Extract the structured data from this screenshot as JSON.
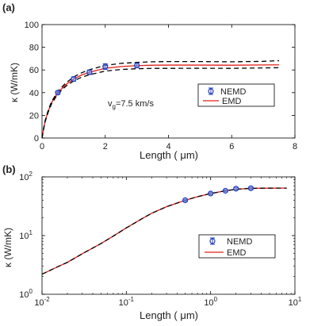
{
  "chart_data": [
    {
      "panel_label": "(a)",
      "type": "line",
      "xlabel": "Length ( μm)",
      "ylabel": "κ (W/mK)",
      "xlim": [
        0,
        8
      ],
      "ylim": [
        0,
        100
      ],
      "x_ticks": [
        0,
        2,
        4,
        6,
        8
      ],
      "y_ticks": [
        0,
        20,
        40,
        60,
        80,
        100
      ],
      "x_tick_labels": [
        "0",
        "2",
        "4",
        "6",
        "8"
      ],
      "y_tick_labels": [
        "0",
        "20",
        "40",
        "60",
        "80",
        "100"
      ],
      "x_scale": "linear",
      "y_scale": "linear",
      "grid": false,
      "annotation": "v_g=7.5 km/s",
      "annotation_base": "v",
      "annotation_sub": "g",
      "annotation_rest": "=7.5 km/s",
      "legend_position": "center-right",
      "series": [
        {
          "name": "NEMD",
          "kind": "markers-errorbars",
          "color": "#1f3fbf",
          "x": [
            0.5,
            1.0,
            1.5,
            2.0,
            3.0
          ],
          "y": [
            40,
            52,
            58,
            63,
            64
          ],
          "err": [
            1.5,
            2,
            2,
            2.5,
            2
          ]
        },
        {
          "name": "EMD",
          "kind": "line",
          "color": "#e0201a",
          "x": [
            0,
            0.05,
            0.1,
            0.2,
            0.3,
            0.5,
            0.75,
            1.0,
            1.25,
            1.5,
            2.0,
            2.5,
            3.0,
            3.5,
            4.0,
            5.0,
            6.0,
            7.0,
            7.5
          ],
          "y": [
            0,
            8,
            15,
            24,
            31,
            40,
            47,
            52,
            55.5,
            58,
            61.5,
            63,
            63.8,
            64.2,
            64.3,
            64.3,
            64.2,
            64.4,
            64.5
          ]
        },
        {
          "name": "",
          "kind": "dashed-band-upper",
          "color": "#000000",
          "x": [
            0,
            0.05,
            0.1,
            0.2,
            0.3,
            0.5,
            0.75,
            1.0,
            1.25,
            1.5,
            2.0,
            2.5,
            3.0,
            3.5,
            4.0,
            5.0,
            6.0,
            7.0,
            7.5
          ],
          "y": [
            0,
            8.3,
            15.5,
            24.8,
            32,
            41.2,
            48.5,
            53.8,
            57.5,
            60.2,
            64,
            65.8,
            66.7,
            67.2,
            67.4,
            67.4,
            67.2,
            67.6,
            68.2
          ]
        },
        {
          "name": "",
          "kind": "dashed-band-lower",
          "color": "#000000",
          "x": [
            0,
            0.05,
            0.1,
            0.2,
            0.3,
            0.5,
            0.75,
            1.0,
            1.25,
            1.5,
            2.0,
            2.5,
            3.0,
            3.5,
            4.0,
            5.0,
            6.0,
            7.0,
            7.5
          ],
          "y": [
            0,
            7.7,
            14.5,
            23.2,
            30,
            38.8,
            45.6,
            50.3,
            53.6,
            55.8,
            59,
            60.4,
            61.1,
            61.4,
            61.4,
            61.5,
            61.4,
            61.8,
            62
          ]
        }
      ]
    },
    {
      "panel_label": "(b)",
      "type": "line",
      "xlabel": "Length ( μm)",
      "ylabel": "κ (W/mK)",
      "xlim": [
        0.01,
        10
      ],
      "ylim": [
        1,
        100
      ],
      "x_scale": "log",
      "y_scale": "log",
      "x_ticks": [
        0.01,
        0.1,
        1,
        10
      ],
      "y_ticks": [
        1,
        10,
        100
      ],
      "x_tick_labels": [
        {
          "base": "10",
          "exp": "-2"
        },
        {
          "base": "10",
          "exp": "-1"
        },
        {
          "base": "10",
          "exp": "0"
        },
        {
          "base": "10",
          "exp": "1"
        }
      ],
      "y_tick_labels": [
        {
          "base": "10",
          "exp": "0"
        },
        {
          "base": "10",
          "exp": "1"
        },
        {
          "base": "10",
          "exp": "2"
        }
      ],
      "grid": false,
      "legend_position": "center-right",
      "series": [
        {
          "name": "NEMD",
          "kind": "markers-errorbars",
          "color": "#1f3fbf",
          "x": [
            0.5,
            1.0,
            1.5,
            2.0,
            3.0
          ],
          "y": [
            40,
            52,
            58,
            63,
            64
          ],
          "err": [
            1.5,
            2,
            2,
            2.5,
            2
          ]
        },
        {
          "name": "EMD",
          "kind": "line",
          "color": "#e0201a",
          "x": [
            0.01,
            0.015,
            0.02,
            0.03,
            0.05,
            0.07,
            0.1,
            0.15,
            0.2,
            0.3,
            0.5,
            0.7,
            1.0,
            1.5,
            2.0,
            3.0,
            5.0,
            8.0
          ],
          "y": [
            2.2,
            2.9,
            3.5,
            4.9,
            7.3,
            9.8,
            13.5,
            19,
            24,
            31,
            40,
            46,
            52,
            58,
            61.5,
            63.8,
            64.3,
            64.5
          ]
        },
        {
          "name": "",
          "kind": "dashed",
          "color": "#000000",
          "x": [
            0.01,
            0.015,
            0.02,
            0.03,
            0.05,
            0.07,
            0.1,
            0.15,
            0.2,
            0.3,
            0.5,
            0.7,
            1.0,
            1.5,
            2.0,
            3.0,
            5.0,
            8.0
          ],
          "y": [
            2.2,
            2.9,
            3.5,
            4.9,
            7.3,
            9.8,
            13.5,
            19,
            24,
            31,
            40,
            46,
            52,
            58,
            61.5,
            63.8,
            64.3,
            64.5
          ]
        }
      ]
    }
  ]
}
